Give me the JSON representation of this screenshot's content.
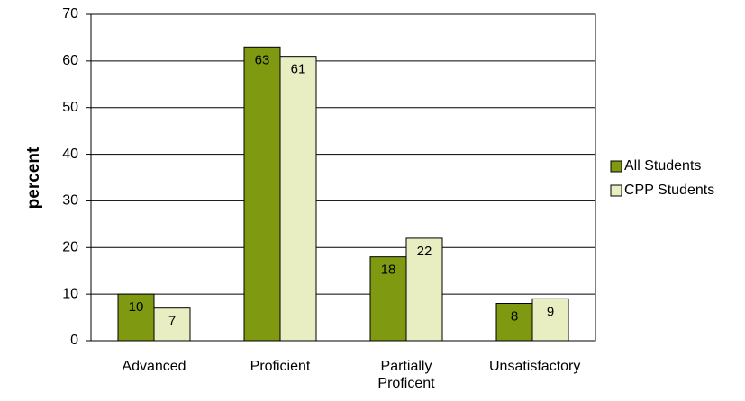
{
  "chart_data": {
    "type": "bar",
    "ylabel": "percent",
    "categories": [
      "Advanced",
      "Proficient",
      "Partially Proficent",
      "Unsatisfactory"
    ],
    "series": [
      {
        "name": "All Students",
        "color": "#7f9a10",
        "values": [
          10,
          63,
          18,
          8
        ]
      },
      {
        "name": "CPP Students",
        "color": "#e9edc2",
        "values": [
          7,
          61,
          22,
          9
        ]
      }
    ],
    "ylim": [
      0,
      70
    ],
    "yticks": [
      0,
      10,
      20,
      30,
      40,
      50,
      60,
      70
    ],
    "grid": true,
    "legend": "right"
  }
}
